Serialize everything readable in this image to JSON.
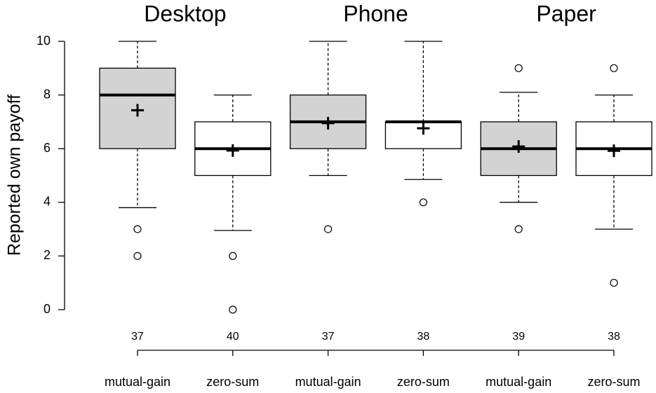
{
  "chart_data": {
    "type": "box",
    "groups": [
      "Desktop",
      "Phone",
      "Paper"
    ],
    "ylabel": "Reported own payoff",
    "categories": [
      "mutual-gain",
      "zero-sum",
      "mutual-gain",
      "zero-sum",
      "mutual-gain",
      "zero-sum"
    ],
    "ylim": [
      0,
      10
    ],
    "yticks": [
      0,
      2,
      4,
      6,
      8,
      10
    ],
    "boxes": [
      {
        "whislo": 3.8,
        "q1": 6,
        "med": 8,
        "q3": 9,
        "whishi": 10,
        "mean": 7.43,
        "fliers": [
          3,
          2
        ],
        "n": 37,
        "color": "#d3d3d3"
      },
      {
        "whislo": 2.95,
        "q1": 5,
        "med": 6,
        "q3": 7,
        "whishi": 8,
        "mean": 5.93,
        "fliers": [
          2,
          0
        ],
        "n": 40,
        "color": "#ffffff"
      },
      {
        "whislo": 5,
        "q1": 6,
        "med": 7,
        "q3": 8,
        "whishi": 10,
        "mean": 6.95,
        "fliers": [
          3
        ],
        "n": 37,
        "color": "#d3d3d3"
      },
      {
        "whislo": 4.85,
        "q1": 6,
        "med": 7,
        "q3": 7,
        "whishi": 10,
        "mean": 6.76,
        "fliers": [
          4
        ],
        "n": 38,
        "color": "#ffffff"
      },
      {
        "whislo": 4,
        "q1": 5,
        "med": 6,
        "q3": 7,
        "whishi": 8.1,
        "mean": 6.08,
        "fliers": [
          9,
          3
        ],
        "n": 39,
        "color": "#d3d3d3"
      },
      {
        "whislo": 3,
        "q1": 5,
        "med": 6,
        "q3": 7,
        "whishi": 8,
        "mean": 5.92,
        "fliers": [
          9,
          1
        ],
        "n": 38,
        "color": "#ffffff"
      }
    ]
  }
}
